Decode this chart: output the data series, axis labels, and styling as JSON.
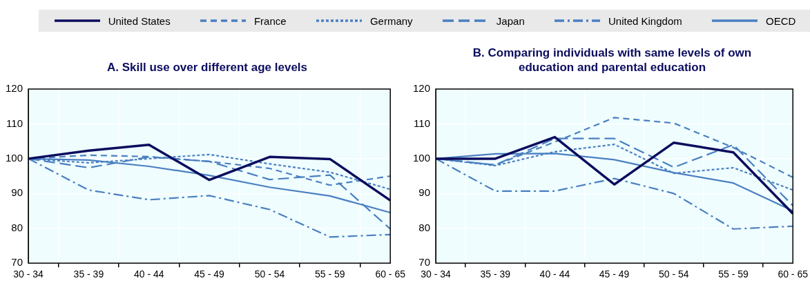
{
  "chart_data": [
    {
      "type": "line",
      "title": "A. Skill use over different age levels",
      "categories": [
        "30 - 34",
        "35 - 39",
        "40 - 44",
        "45 - 49",
        "50 - 54",
        "55 - 59",
        "60 - 65"
      ],
      "ylim": [
        70,
        120
      ],
      "yticks": [
        70,
        80,
        90,
        100,
        110,
        120
      ],
      "grid": true,
      "legend": "top",
      "series": [
        {
          "name": "United States",
          "color": "#0c0c5e",
          "line_style": "solid",
          "values": [
            100,
            102.3,
            104,
            93.9,
            100.5,
            99.9,
            88
          ]
        },
        {
          "name": "France",
          "color": "#4a7fc1",
          "line_style": "dashed",
          "values": [
            100,
            101,
            100.6,
            99.2,
            97.2,
            92.4,
            95
          ]
        },
        {
          "name": "Germany",
          "color": "#4a7fc1",
          "line_style": "dotted",
          "values": [
            100,
            98.8,
            100,
            101.2,
            98.5,
            96.1,
            91.2
          ]
        },
        {
          "name": "Japan",
          "color": "#4a7fc1",
          "line_style": "longdash",
          "values": [
            100,
            97.4,
            100.5,
            99.2,
            94,
            95.3,
            79.8
          ]
        },
        {
          "name": "United Kingdom",
          "color": "#4a7fc1",
          "line_style": "dashdot",
          "values": [
            100,
            91,
            88.2,
            89.4,
            85.4,
            77.5,
            78.2
          ]
        },
        {
          "name": "OECD",
          "color": "#4a7fc1",
          "line_style": "solid",
          "values": [
            100,
            99.6,
            97.8,
            95.2,
            91.8,
            89.3,
            84.5
          ]
        }
      ]
    },
    {
      "type": "line",
      "title": "B. Comparing individuals with same levels of own education and parental education",
      "categories": [
        "30 - 34",
        "35 - 39",
        "40 - 44",
        "45 - 49",
        "50 - 54",
        "55 - 59",
        "60 - 65"
      ],
      "ylim": [
        70,
        120
      ],
      "yticks": [
        70,
        80,
        90,
        100,
        110,
        120
      ],
      "grid": true,
      "series": [
        {
          "color": "#0c0c5e",
          "line_style": "solid",
          "values": [
            100,
            100,
            106.2,
            92.6,
            104.6,
            101.8,
            84.2
          ]
        },
        {
          "color": "#4a7fc1",
          "line_style": "dashed",
          "values": [
            100,
            98.2,
            104.8,
            111.8,
            110.2,
            103.2,
            94.6
          ]
        },
        {
          "color": "#4a7fc1",
          "line_style": "dotted",
          "values": [
            100,
            98,
            102,
            104.1,
            95.8,
            97.4,
            91
          ]
        },
        {
          "color": "#4a7fc1",
          "line_style": "longdash",
          "values": [
            100,
            98.2,
            105.8,
            105.8,
            97.5,
            104,
            86.5
          ]
        },
        {
          "color": "#4a7fc1",
          "line_style": "dashdot",
          "values": [
            100,
            90.7,
            90.7,
            94.3,
            90,
            79.8,
            80.6
          ]
        },
        {
          "color": "#4a7fc1",
          "line_style": "solid",
          "values": [
            100,
            101.4,
            101.5,
            99.7,
            96,
            93,
            85
          ]
        }
      ]
    }
  ]
}
